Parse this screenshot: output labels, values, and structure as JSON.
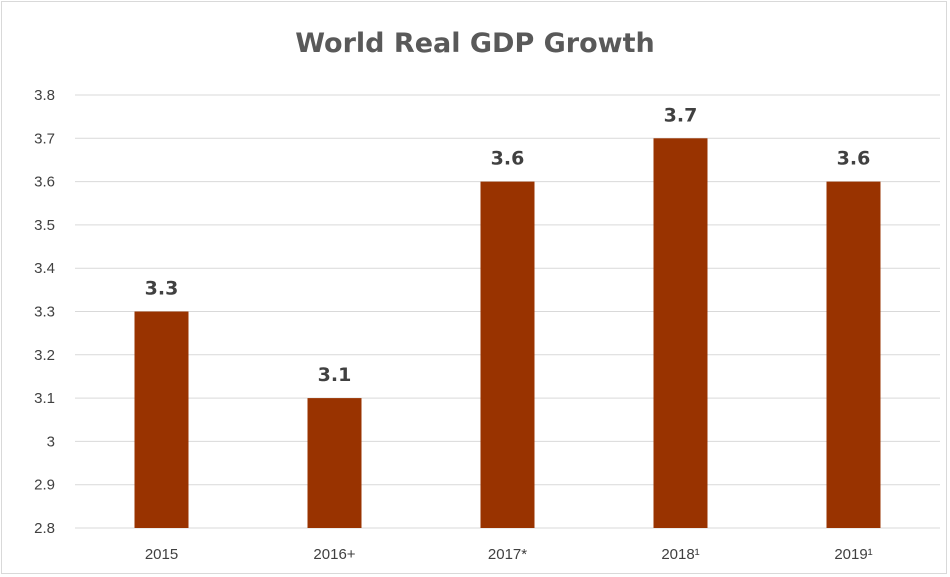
{
  "chart_data": {
    "type": "bar",
    "title": "World Real GDP Growth",
    "categories": [
      "2015",
      "2016+",
      "2017*",
      "2018¹",
      "2019¹"
    ],
    "values": [
      3.3,
      3.1,
      3.6,
      3.7,
      3.6
    ],
    "data_labels": [
      "3.3",
      "3.1",
      "3.6",
      "3.7",
      "3.6"
    ],
    "y_ticks": [
      "2.8",
      "2.9",
      "3",
      "3.1",
      "3.2",
      "3.3",
      "3.4",
      "3.5",
      "3.6",
      "3.7",
      "3.8"
    ],
    "ylim": [
      2.8,
      3.8
    ],
    "xlabel": "",
    "ylabel": "",
    "grid": true,
    "legend": "none",
    "bar_color": "#993300",
    "gridline_color": "#d9d9d9"
  }
}
